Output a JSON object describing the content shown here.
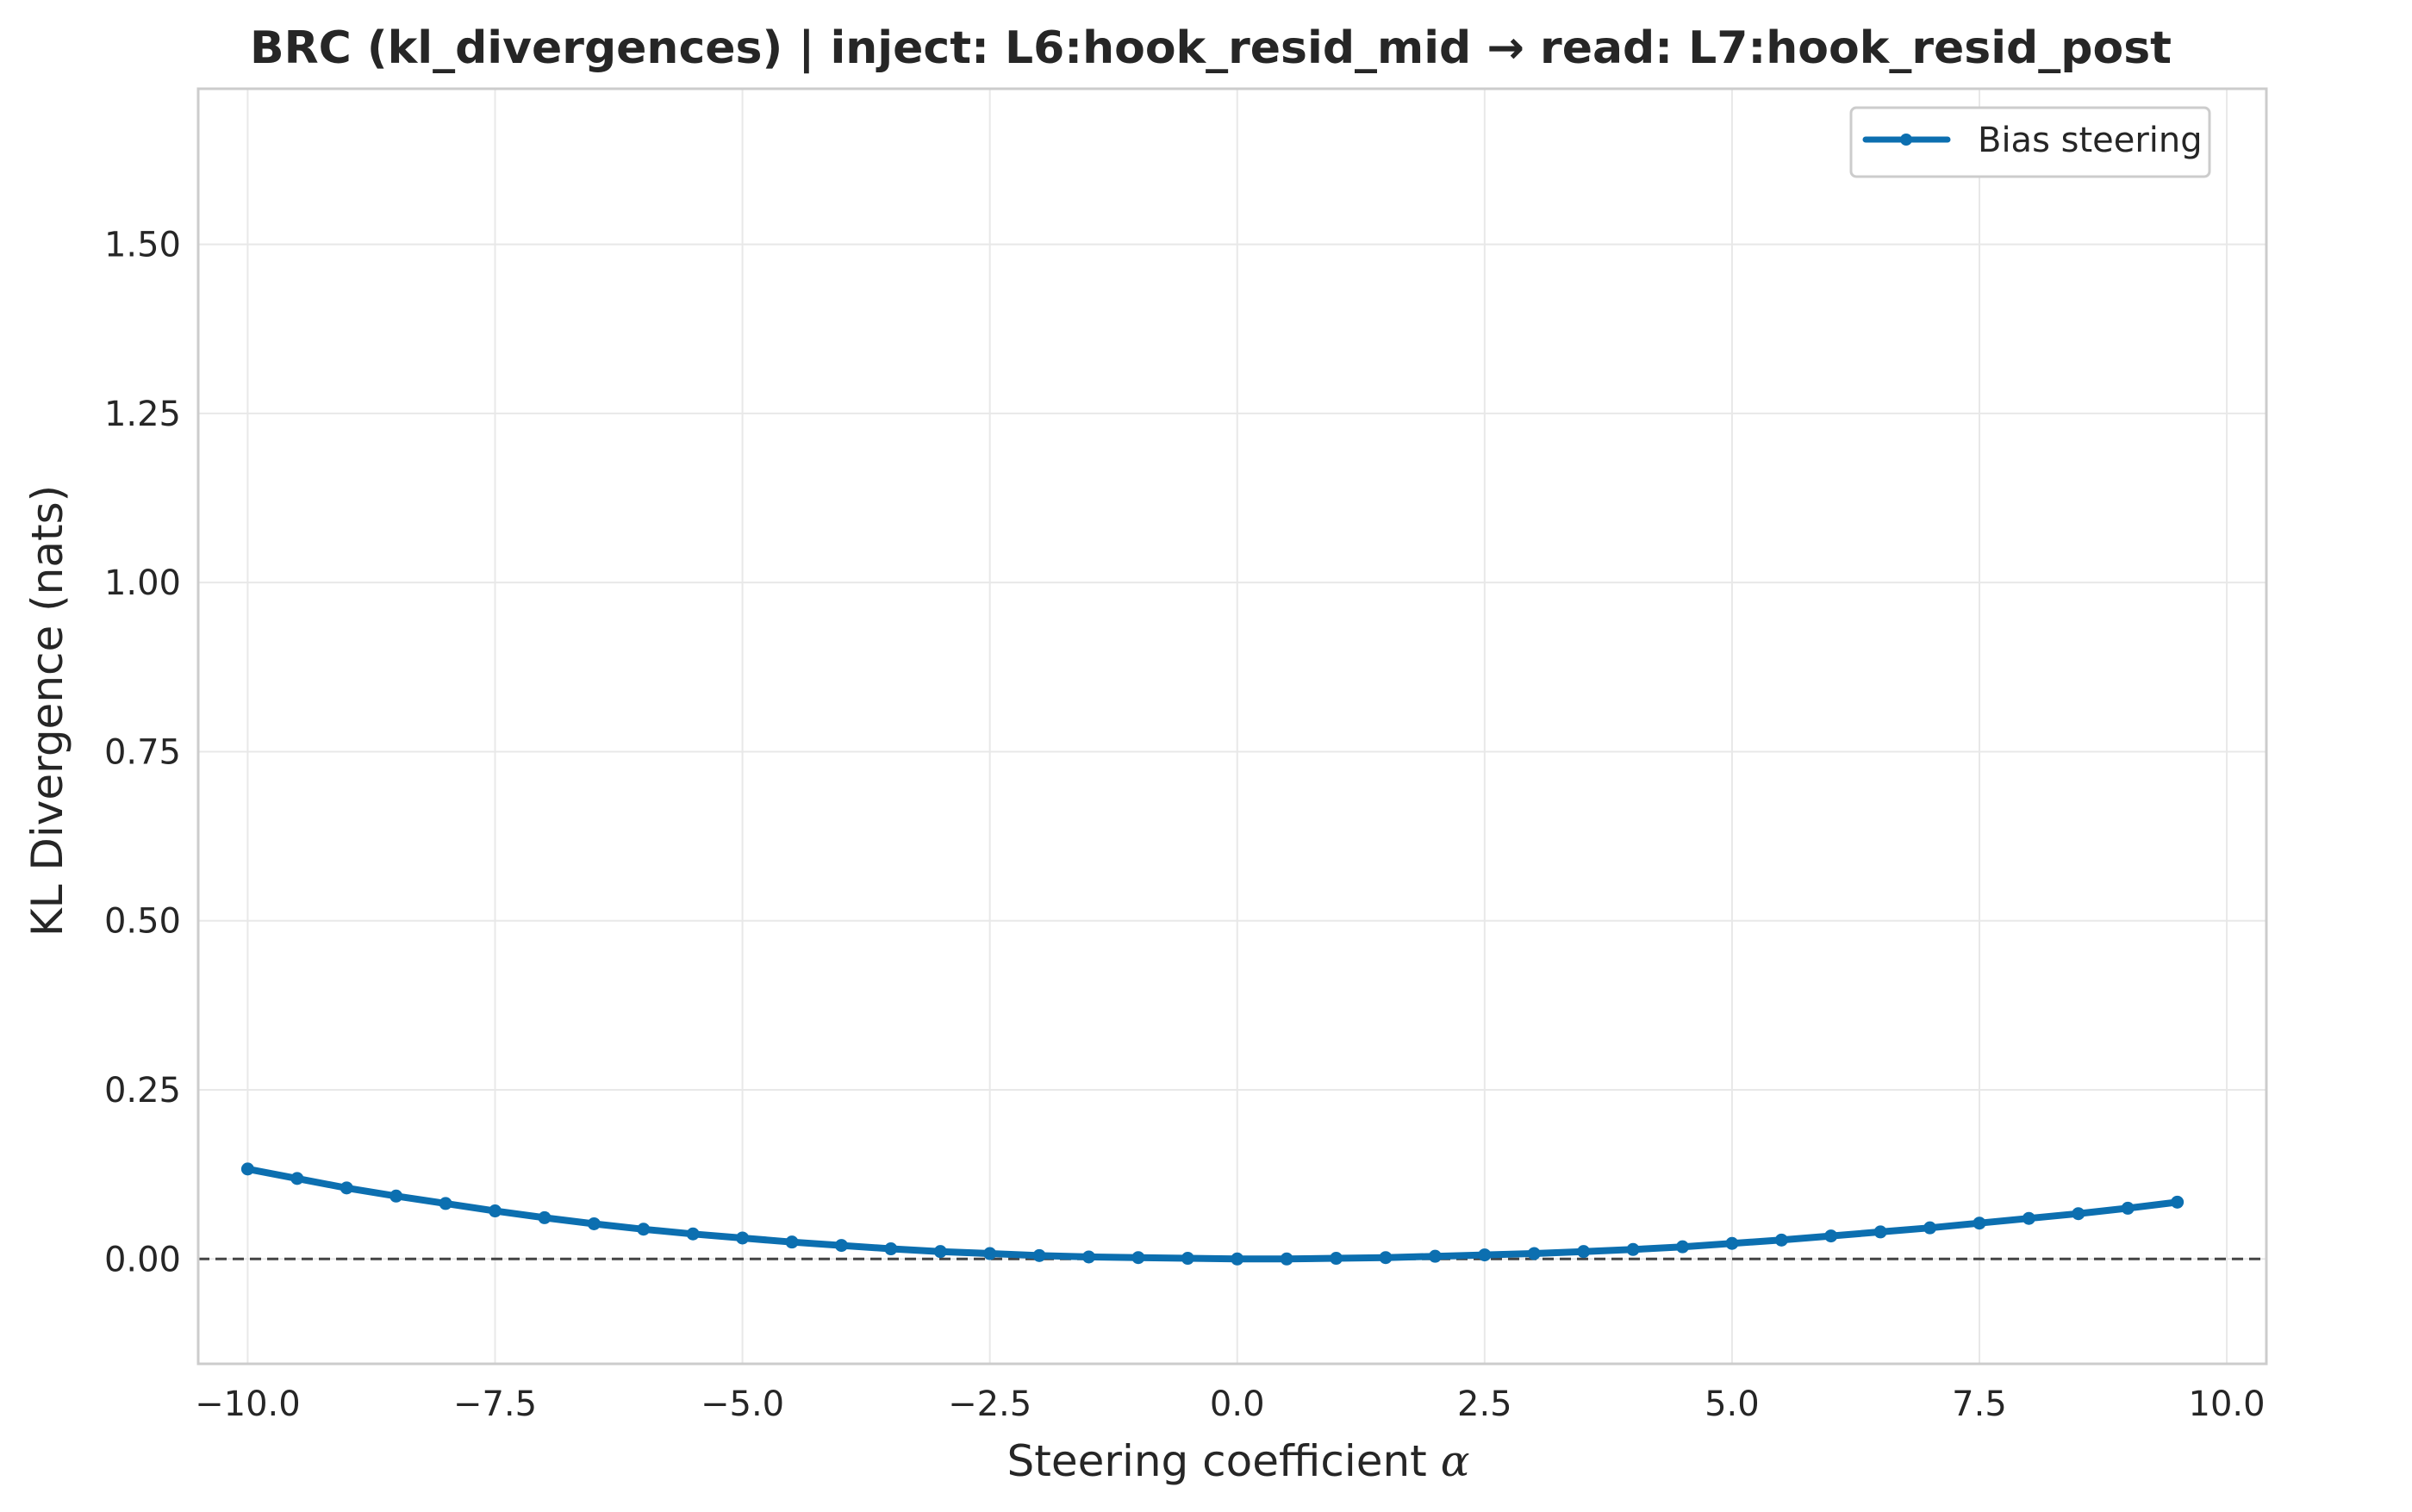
{
  "chart_data": {
    "type": "line",
    "title": "BRC (kl_divergences) | inject: L6:hook_resid_mid → read: L7:hook_resid_post",
    "xlabel_text": "Steering coefficient ",
    "xlabel_symbol": "α",
    "ylabel": "KL Divergence (nats)",
    "xlim": [
      -10.5,
      10.4
    ],
    "ylim": [
      -0.155,
      1.73
    ],
    "x_ticks": [
      -10.0,
      -7.5,
      -5.0,
      -2.5,
      0.0,
      2.5,
      5.0,
      7.5,
      10.0
    ],
    "x_tick_labels": [
      "−10.0",
      "−7.5",
      "−5.0",
      "−2.5",
      "0.0",
      "2.5",
      "5.0",
      "7.5",
      "10.0"
    ],
    "y_ticks": [
      0.0,
      0.25,
      0.5,
      0.75,
      1.0,
      1.25,
      1.5
    ],
    "y_tick_labels": [
      "0.00",
      "0.25",
      "0.50",
      "0.75",
      "1.00",
      "1.25",
      "1.50"
    ],
    "grid": true,
    "reference_line": {
      "y": 0.0,
      "style": "dashed",
      "color": "#444444"
    },
    "legend": {
      "position": "top-right"
    },
    "colors": {
      "series": "#0C6FB0",
      "grid": "#e8e8e8",
      "frame": "#cccccc"
    },
    "series": [
      {
        "name": "Bias steering",
        "x": [
          -10.0,
          -9.5,
          -9.0,
          -8.5,
          -8.0,
          -7.5,
          -7.0,
          -6.5,
          -6.0,
          -5.5,
          -5.0,
          -4.5,
          -4.0,
          -3.5,
          -3.0,
          -2.5,
          -2.0,
          -1.5,
          -1.0,
          -0.5,
          0.0,
          0.5,
          1.0,
          1.5,
          2.0,
          2.5,
          3.0,
          3.5,
          4.0,
          4.5,
          5.0,
          5.5,
          6.0,
          6.5,
          7.0,
          7.5,
          8.0,
          8.5,
          9.0,
          9.5
        ],
        "y": [
          0.133,
          0.119,
          0.105,
          0.093,
          0.082,
          0.071,
          0.061,
          0.052,
          0.044,
          0.037,
          0.031,
          0.025,
          0.02,
          0.015,
          0.011,
          0.008,
          0.005,
          0.003,
          0.002,
          0.001,
          0.0,
          0.0,
          0.001,
          0.002,
          0.004,
          0.006,
          0.008,
          0.011,
          0.014,
          0.018,
          0.023,
          0.028,
          0.034,
          0.04,
          0.046,
          0.053,
          0.06,
          0.067,
          0.075,
          0.084
        ]
      }
    ]
  }
}
